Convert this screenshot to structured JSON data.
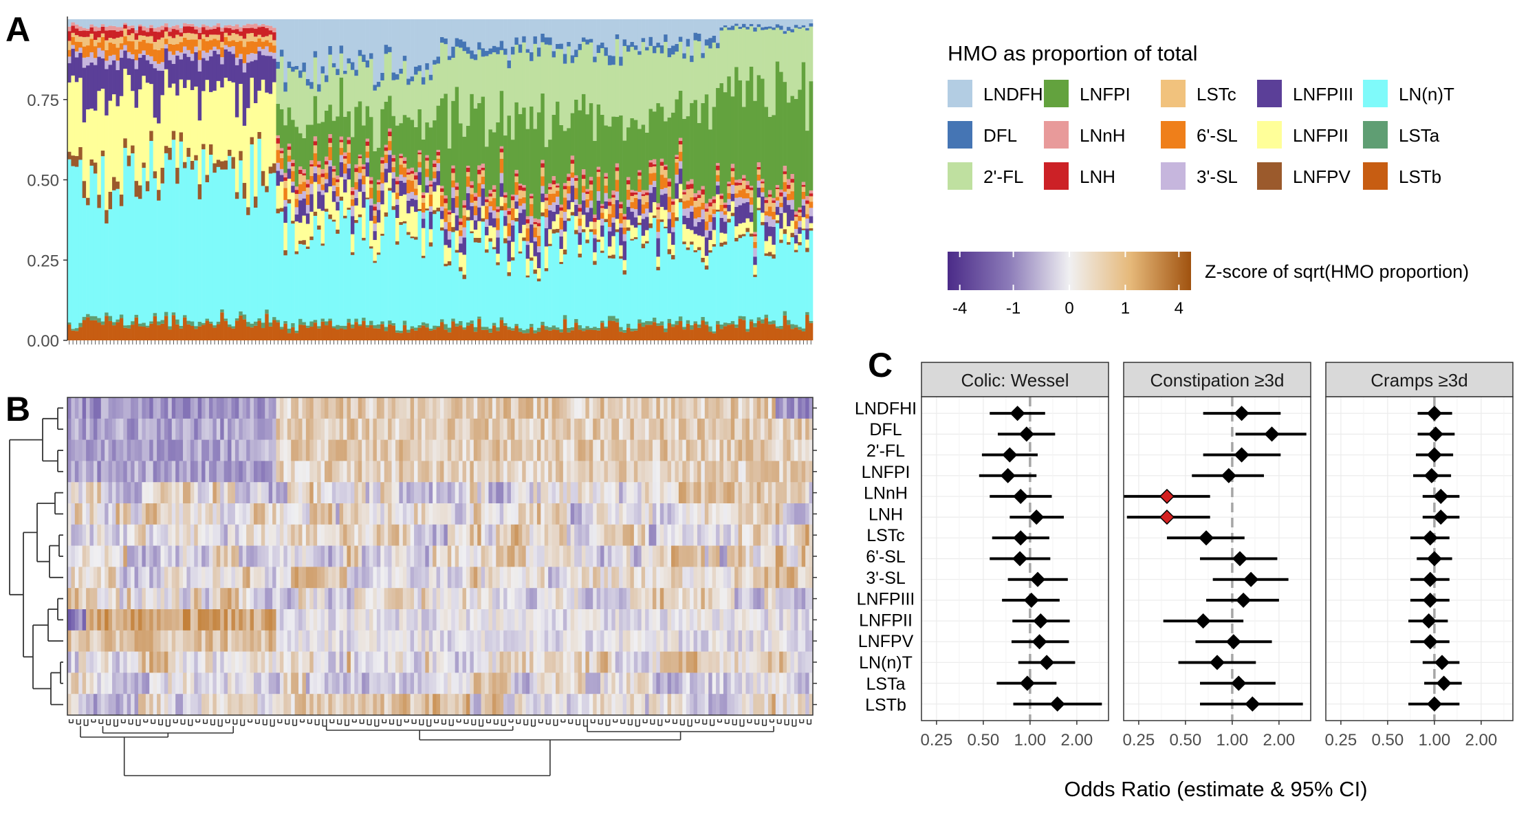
{
  "panel_labels": [
    "A",
    "B",
    "C"
  ],
  "colors": {
    "LNDFHI": "#b3cde3",
    "DFL": "#4575b4",
    "2'-FL": "#bfe0a0",
    "LNFPI": "#63a23e",
    "LNnH": "#e89a9a",
    "LNH": "#cc2126",
    "LSTc": "#f1c27d",
    "6'-SL": "#ef7f1a",
    "3'-SL": "#c6b6dd",
    "LNFPIII": "#5b3f98",
    "LNFPII": "#ffff99",
    "LNFPV": "#9b5a2c",
    "LN(n)T": "#7ffafa",
    "LSTa": "#5f9e73",
    "LSTb": "#c75d12",
    "heat_low": "#4b2b88",
    "heat_mid": "#f0f0f2",
    "heat_high": "#a0520f",
    "highlight": "#d42020"
  },
  "chart_data": [
    {
      "type": "bar",
      "stacked": true,
      "panel": "A",
      "title": "",
      "xlabel": "",
      "ylabel": "",
      "ylim": [
        0,
        1
      ],
      "yticks": [
        "0.00",
        "0.25",
        "0.50",
        "0.75"
      ],
      "n_samples": 200,
      "legend_title": "HMO as proportion of total",
      "legend_entries": [
        "LNDFHI",
        "DFL",
        "2'-FL",
        "LNFPI",
        "LNnH",
        "LNH",
        "LSTc",
        "6'-SL",
        "3'-SL",
        "LNFPIII",
        "LNFPII",
        "LNFPV",
        "LN(n)T",
        "LSTa",
        "LSTb"
      ],
      "stack_order_bottom_to_top": [
        "LSTb",
        "LSTa",
        "LN(n)T",
        "LNFPV",
        "LNFPII",
        "LNFPIII",
        "3'-SL",
        "6'-SL",
        "LSTc",
        "LNH",
        "LNnH",
        "LNFPI",
        "2'-FL",
        "DFL",
        "LNDFHI"
      ],
      "segment_groups": [
        {
          "samples": "1-56",
          "mean_proportions": {
            "LSTb": 0.06,
            "LSTa": 0.01,
            "LN(n)T": 0.45,
            "LNFPV": 0.03,
            "LNFPII": 0.23,
            "LNFPIII": 0.1,
            "3'-SL": 0.02,
            "6'-SL": 0.03,
            "LSTc": 0.02,
            "LNH": 0.02,
            "LNnH": 0.01,
            "LNFPI": 0.0,
            "2'-FL": 0.0,
            "DFL": 0.0,
            "LNDFHI": 0.02
          }
        },
        {
          "samples": "57-100",
          "mean_proportions": {
            "LSTb": 0.04,
            "LSTa": 0.01,
            "LN(n)T": 0.3,
            "LNFPV": 0.01,
            "LNFPII": 0.07,
            "LNFPIII": 0.04,
            "3'-SL": 0.02,
            "6'-SL": 0.03,
            "LSTc": 0.02,
            "LNH": 0.01,
            "LNnH": 0.01,
            "LNFPI": 0.14,
            "2'-FL": 0.14,
            "DFL": 0.02,
            "LNDFHI": 0.14
          }
        },
        {
          "samples": "101-175",
          "mean_proportions": {
            "LSTb": 0.04,
            "LSTa": 0.01,
            "LN(n)T": 0.24,
            "LNFPV": 0.01,
            "LNFPII": 0.04,
            "LNFPIII": 0.04,
            "3'-SL": 0.02,
            "6'-SL": 0.03,
            "LSTc": 0.02,
            "LNH": 0.01,
            "LNnH": 0.01,
            "LNFPI": 0.22,
            "2'-FL": 0.2,
            "DFL": 0.02,
            "LNDFHI": 0.08
          }
        },
        {
          "samples": "176-200",
          "mean_proportions": {
            "LSTb": 0.05,
            "LSTa": 0.01,
            "LN(n)T": 0.25,
            "LNFPV": 0.01,
            "LNFPII": 0.03,
            "LNFPIII": 0.04,
            "3'-SL": 0.02,
            "6'-SL": 0.02,
            "LSTc": 0.02,
            "LNH": 0.01,
            "LNnH": 0.01,
            "LNFPI": 0.3,
            "2'-FL": 0.2,
            "DFL": 0.01,
            "LNDFHI": 0.02
          }
        }
      ]
    },
    {
      "type": "heatmap",
      "panel": "B",
      "title": "",
      "rows": [
        "LNDFHI",
        "DFL",
        "2'-FL",
        "LNFPI",
        "LNnH",
        "LNH",
        "LSTc",
        "6'-SL",
        "3'-SL",
        "LNFPIII",
        "LNFPII",
        "LNFPV",
        "LN(n)T",
        "LSTa",
        "LSTb"
      ],
      "n_columns": 200,
      "colorbar_title": "Z-score of sqrt(HMO proportion)",
      "colorbar_ticks": [
        "-4",
        "-1",
        "0",
        "1",
        "4"
      ],
      "row_dendrogram": true,
      "column_dendrogram": true,
      "block_pattern": {
        "LNDFHI": [
          [
            1,
            56,
            -1.2
          ],
          [
            57,
            190,
            0.6
          ],
          [
            191,
            200,
            -1.2
          ]
        ],
        "DFL": [
          [
            1,
            56,
            -1.0
          ],
          [
            57,
            200,
            0.6
          ]
        ],
        "2'-FL": [
          [
            1,
            56,
            -1.0
          ],
          [
            57,
            200,
            0.6
          ]
        ],
        "LNFPI": [
          [
            1,
            56,
            -1.0
          ],
          [
            57,
            200,
            0.5
          ]
        ],
        "LNFPII": [
          [
            1,
            5,
            -1.5
          ],
          [
            6,
            56,
            1.2
          ],
          [
            57,
            200,
            -0.2
          ]
        ],
        "LNFPV": [
          [
            1,
            56,
            0.8
          ],
          [
            57,
            200,
            -0.2
          ]
        ]
      }
    },
    {
      "type": "scatter",
      "subtype": "forest",
      "panel": "C",
      "xlabel": "Odds Ratio (estimate & 95% CI)",
      "x_scale": "log",
      "xticks": [
        "0.25",
        "0.50",
        "1.00",
        "2.00"
      ],
      "xlim": [
        0.2,
        3.2
      ],
      "reference_line": 1.0,
      "facets": [
        "Colic: Wessel",
        "Constipation ≥3d",
        "Cramps ≥3d"
      ],
      "rows": [
        "LNDFHI",
        "DFL",
        "2'-FL",
        "LNFPI",
        "LNnH",
        "LNH",
        "LSTc",
        "6'-SL",
        "3'-SL",
        "LNFPIII",
        "LNFPII",
        "LNFPV",
        "LN(n)T",
        "LSTa",
        "LSTb"
      ],
      "series": [
        {
          "facet": "Colic: Wessel",
          "estimates": [
            {
              "hmo": "LNDFHI",
              "or": 0.83,
              "lo": 0.55,
              "hi": 1.25
            },
            {
              "hmo": "DFL",
              "or": 0.95,
              "lo": 0.62,
              "hi": 1.45
            },
            {
              "hmo": "2'-FL",
              "or": 0.74,
              "lo": 0.49,
              "hi": 1.12
            },
            {
              "hmo": "LNFPI",
              "or": 0.72,
              "lo": 0.47,
              "hi": 1.1
            },
            {
              "hmo": "LNnH",
              "or": 0.87,
              "lo": 0.55,
              "hi": 1.38
            },
            {
              "hmo": "LNH",
              "or": 1.1,
              "lo": 0.74,
              "hi": 1.65
            },
            {
              "hmo": "LSTc",
              "or": 0.87,
              "lo": 0.57,
              "hi": 1.33
            },
            {
              "hmo": "6'-SL",
              "or": 0.86,
              "lo": 0.55,
              "hi": 1.35
            },
            {
              "hmo": "3'-SL",
              "or": 1.12,
              "lo": 0.72,
              "hi": 1.75
            },
            {
              "hmo": "LNFPIII",
              "or": 1.02,
              "lo": 0.66,
              "hi": 1.55
            },
            {
              "hmo": "LNFPII",
              "or": 1.17,
              "lo": 0.77,
              "hi": 1.8
            },
            {
              "hmo": "LNFPV",
              "or": 1.15,
              "lo": 0.76,
              "hi": 1.78
            },
            {
              "hmo": "LN(n)T",
              "or": 1.28,
              "lo": 0.84,
              "hi": 1.95
            },
            {
              "hmo": "LSTa",
              "or": 0.96,
              "lo": 0.61,
              "hi": 1.48
            },
            {
              "hmo": "LSTb",
              "or": 1.5,
              "lo": 0.78,
              "hi": 2.9
            }
          ]
        },
        {
          "facet": "Constipation ≥3d",
          "estimates": [
            {
              "hmo": "LNDFHI",
              "or": 1.15,
              "lo": 0.65,
              "hi": 2.05
            },
            {
              "hmo": "DFL",
              "or": 1.8,
              "lo": 1.05,
              "hi": 3.0
            },
            {
              "hmo": "2'-FL",
              "or": 1.15,
              "lo": 0.65,
              "hi": 2.05
            },
            {
              "hmo": "LNFPI",
              "or": 0.95,
              "lo": 0.55,
              "hi": 1.6
            },
            {
              "hmo": "LNnH",
              "or": 0.38,
              "lo": 0.2,
              "hi": 0.72,
              "significant": true
            },
            {
              "hmo": "LNH",
              "or": 0.38,
              "lo": 0.21,
              "hi": 0.72,
              "significant": true
            },
            {
              "hmo": "LSTc",
              "or": 0.68,
              "lo": 0.38,
              "hi": 1.2
            },
            {
              "hmo": "6'-SL",
              "or": 1.12,
              "lo": 0.62,
              "hi": 1.95
            },
            {
              "hmo": "3'-SL",
              "or": 1.32,
              "lo": 0.75,
              "hi": 2.3
            },
            {
              "hmo": "LNFPIII",
              "or": 1.18,
              "lo": 0.68,
              "hi": 2.0
            },
            {
              "hmo": "LNFPII",
              "or": 0.65,
              "lo": 0.36,
              "hi": 1.18
            },
            {
              "hmo": "LNFPV",
              "or": 1.02,
              "lo": 0.58,
              "hi": 1.8
            },
            {
              "hmo": "LN(n)T",
              "or": 0.8,
              "lo": 0.45,
              "hi": 1.42
            },
            {
              "hmo": "LSTa",
              "or": 1.1,
              "lo": 0.62,
              "hi": 1.9
            },
            {
              "hmo": "LSTb",
              "or": 1.35,
              "lo": 0.62,
              "hi": 2.85
            }
          ]
        },
        {
          "facet": "Cramps ≥3d",
          "estimates": [
            {
              "hmo": "LNDFHI",
              "or": 1.0,
              "lo": 0.78,
              "hi": 1.3
            },
            {
              "hmo": "DFL",
              "or": 1.02,
              "lo": 0.78,
              "hi": 1.35
            },
            {
              "hmo": "2'-FL",
              "or": 1.0,
              "lo": 0.76,
              "hi": 1.32
            },
            {
              "hmo": "LNFPI",
              "or": 0.96,
              "lo": 0.73,
              "hi": 1.28
            },
            {
              "hmo": "LNnH",
              "or": 1.1,
              "lo": 0.84,
              "hi": 1.45
            },
            {
              "hmo": "LNH",
              "or": 1.1,
              "lo": 0.84,
              "hi": 1.45
            },
            {
              "hmo": "LSTc",
              "or": 0.94,
              "lo": 0.7,
              "hi": 1.25
            },
            {
              "hmo": "6'-SL",
              "or": 1.0,
              "lo": 0.77,
              "hi": 1.3
            },
            {
              "hmo": "3'-SL",
              "or": 0.94,
              "lo": 0.7,
              "hi": 1.25
            },
            {
              "hmo": "LNFPIII",
              "or": 0.94,
              "lo": 0.7,
              "hi": 1.25
            },
            {
              "hmo": "LNFPII",
              "or": 0.92,
              "lo": 0.68,
              "hi": 1.22
            },
            {
              "hmo": "LNFPV",
              "or": 0.94,
              "lo": 0.7,
              "hi": 1.25
            },
            {
              "hmo": "LN(n)T",
              "or": 1.12,
              "lo": 0.84,
              "hi": 1.45
            },
            {
              "hmo": "LSTa",
              "or": 1.15,
              "lo": 0.86,
              "hi": 1.5
            },
            {
              "hmo": "LSTb",
              "or": 1.0,
              "lo": 0.68,
              "hi": 1.45
            }
          ]
        }
      ]
    }
  ]
}
